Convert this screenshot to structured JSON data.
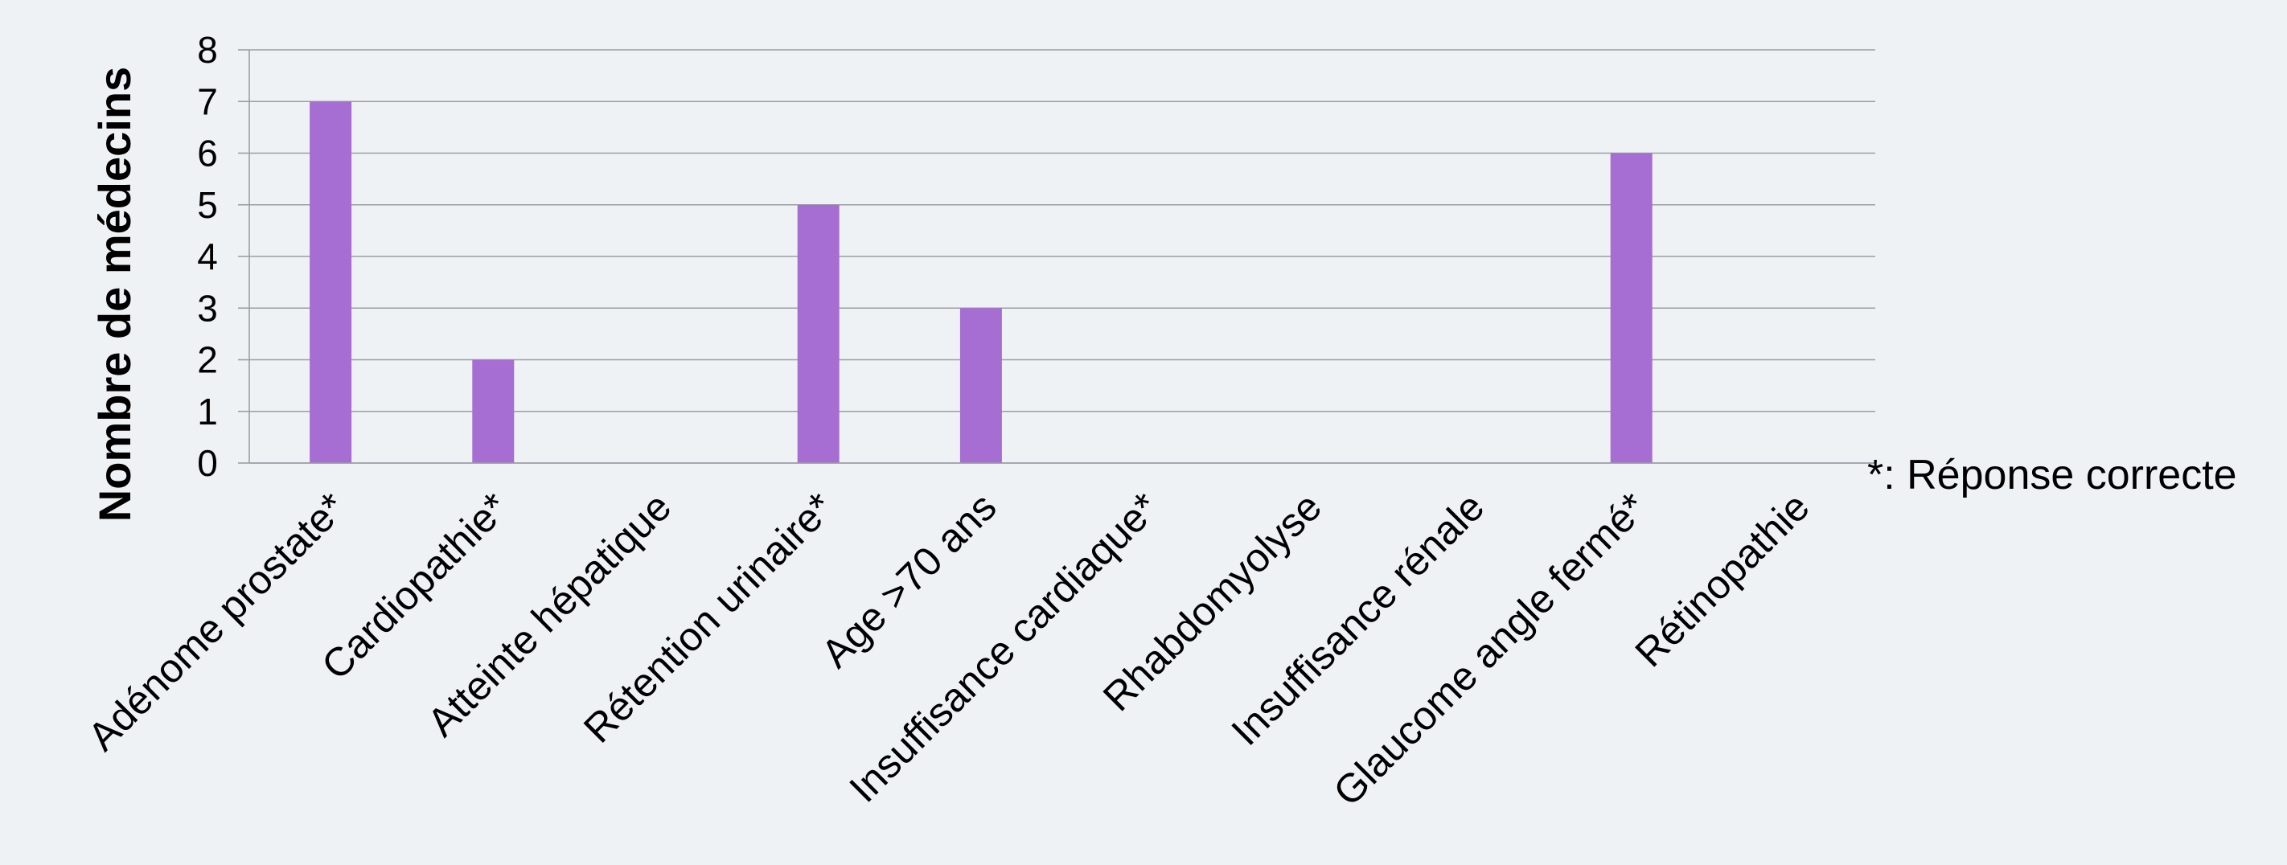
{
  "chart_data": {
    "type": "bar",
    "title": "",
    "xlabel": "",
    "ylabel": "Nombre de médecins",
    "ylim": [
      0,
      8
    ],
    "yticks": [
      0,
      1,
      2,
      3,
      4,
      5,
      6,
      7,
      8
    ],
    "grid": true,
    "legend": "none",
    "bar_color": "#a66dd3",
    "categories": [
      "Adénome prostate*",
      "Cardiopathie*",
      "Atteinte hépatique",
      "Rétention urinaire*",
      "Age >70 ans",
      "Insuffisance cardiaque*",
      "Rhabdomyolyse",
      "Insuffisance rénale",
      "Glaucome angle fermé*",
      "Rétinopathie"
    ],
    "values": [
      7,
      2,
      0,
      5,
      3,
      0,
      0,
      0,
      6,
      0
    ],
    "annotation": "*: Réponse correcte"
  }
}
